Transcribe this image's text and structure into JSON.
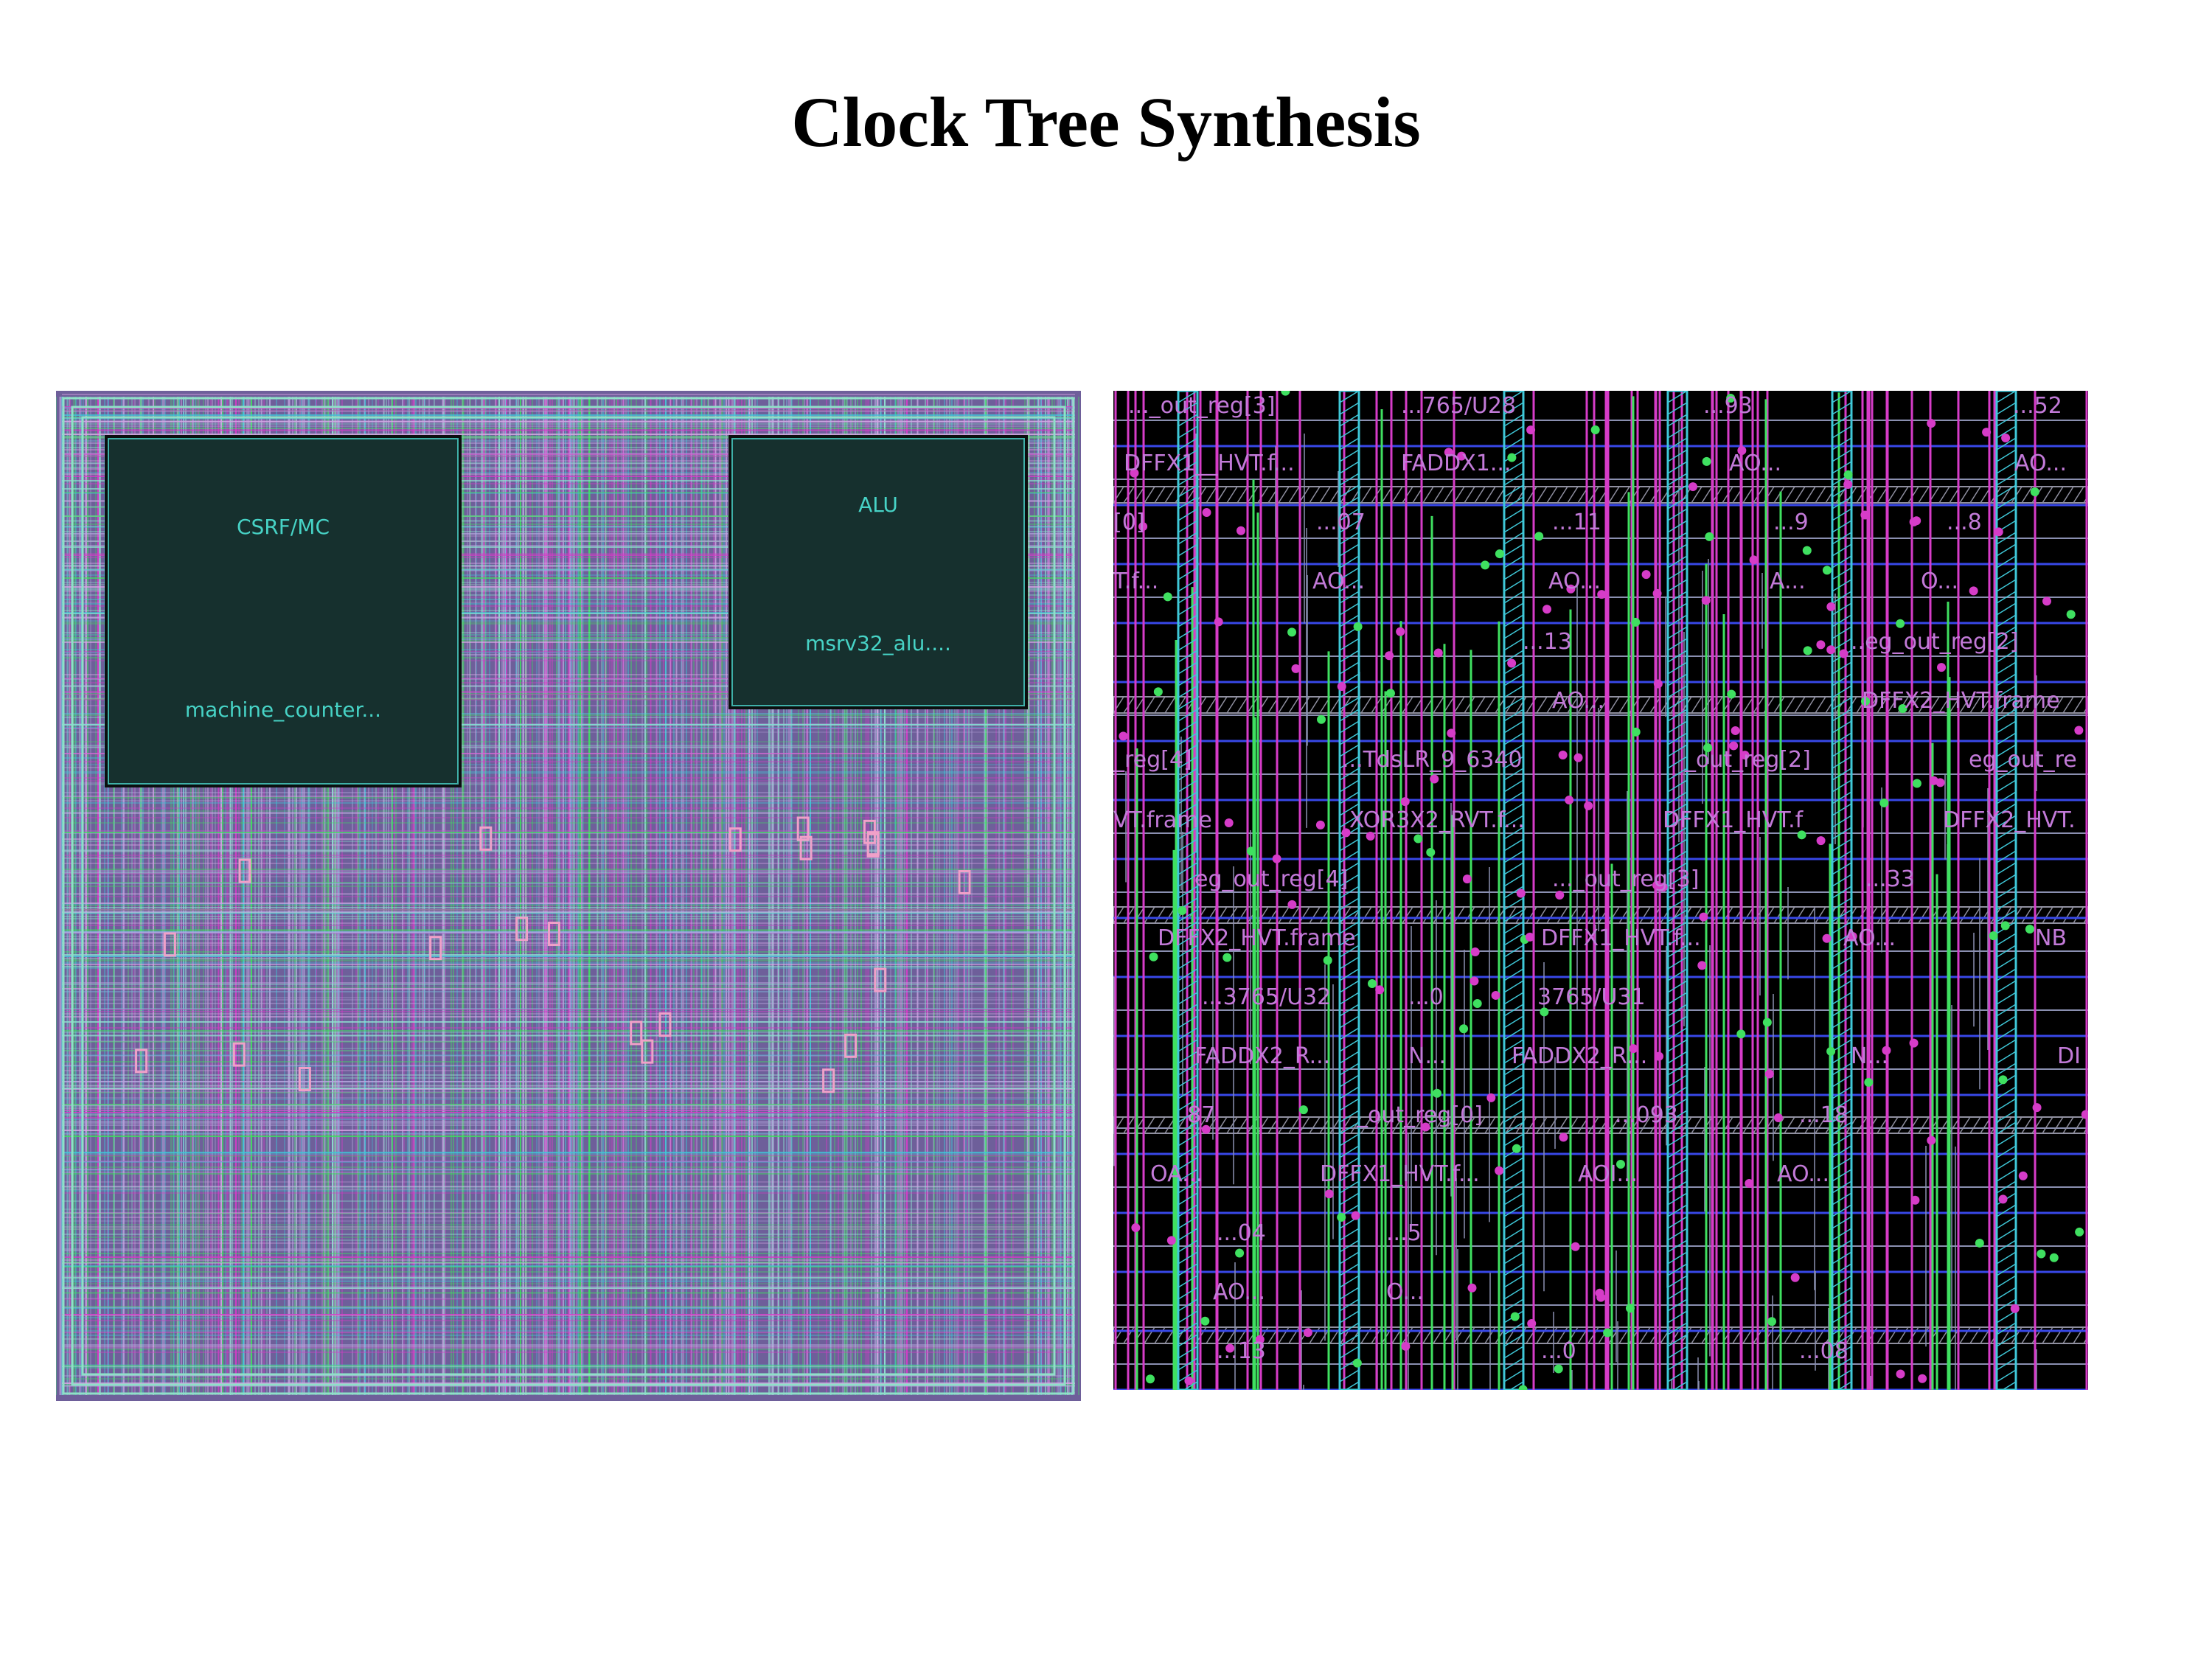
{
  "title": "Clock Tree Synthesis",
  "colors": {
    "background": "#000000",
    "macro_fill": "#16302e",
    "macro_text": "#47d3c6",
    "cell_text": "#c27ad8",
    "metal_magenta": "#d63cc8",
    "metal_green": "#3fe060",
    "metal_cyan": "#3fc8d8",
    "metal_blue": "#3848e8",
    "cell_outline": "#8a8fb0"
  },
  "layout_view": {
    "macros": [
      {
        "id": "csrf",
        "name": "CSRF/MC",
        "instance": "machine_counter..."
      },
      {
        "id": "alu",
        "name": "ALU",
        "instance": "msrv32_alu...."
      }
    ]
  },
  "zoom_view": {
    "cell_labels": [
      "..._out_reg[3]",
      "...765/U28",
      "...93",
      "...52",
      "DFFX1__HVT.f...",
      "FADDX1...",
      "AO...",
      "AO...",
      "[0]",
      "...07",
      "...11",
      "...9",
      "...8",
      "T.f...",
      "AO...",
      "AO...",
      "A...",
      "O...",
      "...13",
      "..eg_out_reg[2]",
      "AO...",
      "DFFX2_HVT.frame",
      "_reg[4]",
      "...TdsLR_9_6340",
      "_out_reg[2]",
      "eg_out_re",
      "VT.frame",
      "XOR3X2_RVT.f...",
      "DFFX1_HVT.f",
      "DFFX2_HVT.",
      "eg_out_reg[4]",
      "..._out_reg[3]",
      "...33",
      "DFFX2_HVT.frame",
      "DFFX1_HVT.f...",
      "AO...",
      "NB",
      "...3765/U32",
      "...0",
      "3765/U31",
      "FADDX2_R...",
      "N...",
      "FADDX2_R...",
      "N...",
      "DI",
      "87",
      "_out_reg[0]",
      "...093",
      "...18",
      "OA...",
      "DFFX1_HVT.f...",
      "AOI...",
      "AO...",
      "...04",
      "...5",
      "AO...",
      "O...",
      "...13",
      "...0",
      "...08"
    ]
  }
}
